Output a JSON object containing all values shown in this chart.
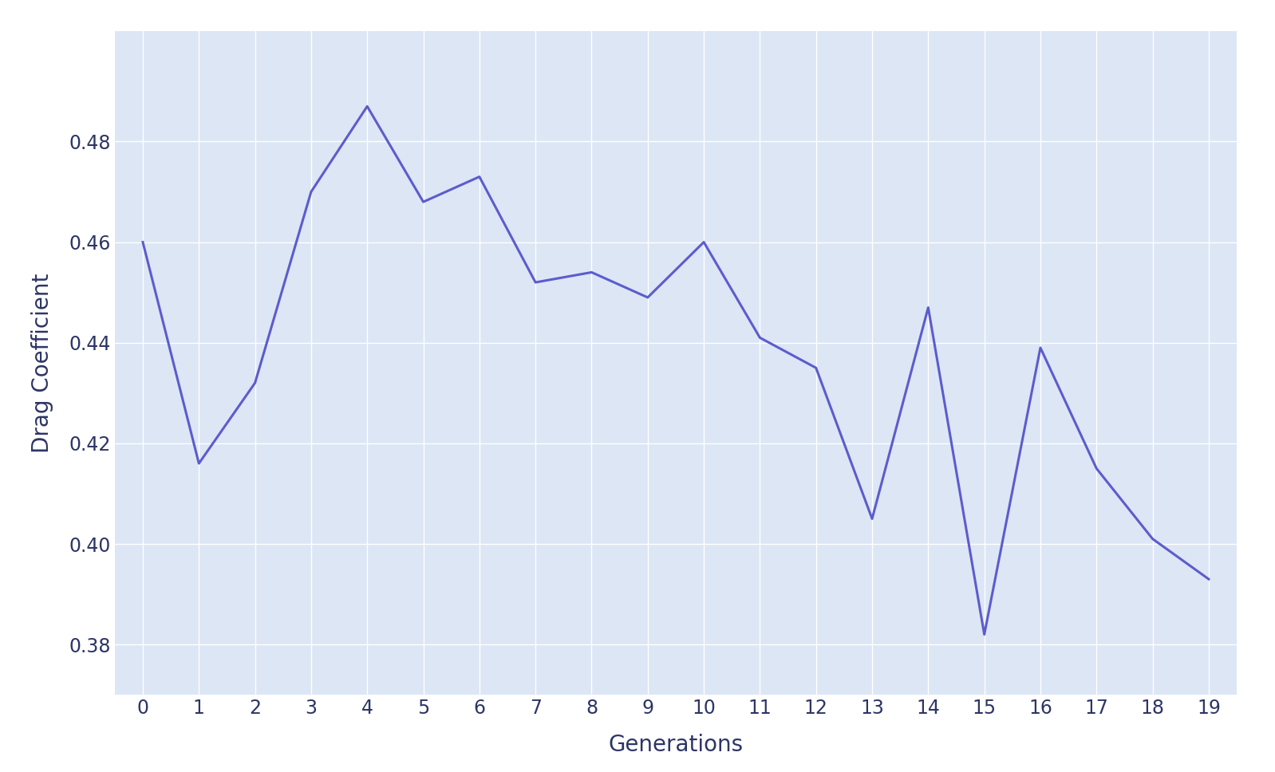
{
  "x": [
    0,
    1,
    2,
    3,
    4,
    5,
    6,
    7,
    8,
    9,
    10,
    11,
    12,
    13,
    14,
    15,
    16,
    17,
    18,
    19
  ],
  "y": [
    0.46,
    0.416,
    0.432,
    0.47,
    0.487,
    0.468,
    0.473,
    0.452,
    0.454,
    0.449,
    0.46,
    0.441,
    0.435,
    0.405,
    0.447,
    0.382,
    0.439,
    0.415,
    0.401,
    0.393
  ],
  "xlabel": "Generations",
  "ylabel": "Drag Coefficient",
  "line_color": "#5c5ccc",
  "figure_background_color": "#ffffff",
  "plot_background_color": "#dce6f5",
  "grid_color": "#ffffff",
  "tick_color": "#2d3566",
  "label_color": "#2d3566",
  "ylim_min": 0.37,
  "ylim_max": 0.502,
  "xlim_min": -0.5,
  "xlim_max": 19.5,
  "xlabel_fontsize": 20,
  "ylabel_fontsize": 20,
  "tick_fontsize": 17,
  "line_width": 2.2,
  "yticks": [
    0.38,
    0.4,
    0.42,
    0.44,
    0.46,
    0.48
  ]
}
